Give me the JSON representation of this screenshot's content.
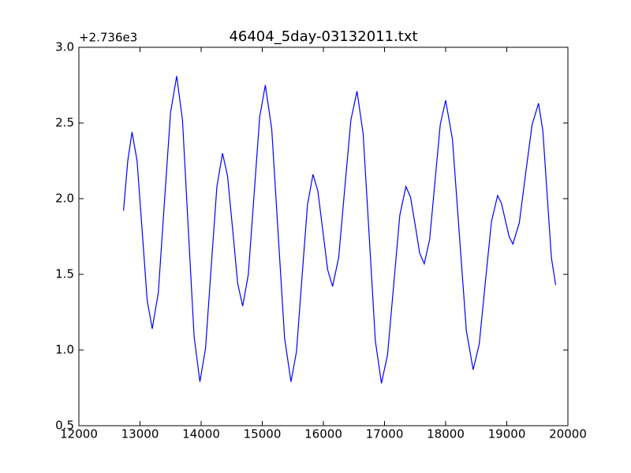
{
  "chart_data": {
    "type": "line",
    "title": "46404_5day-03132011.txt",
    "offset_label": "+2.736e3",
    "x": [
      12730,
      12800,
      12870,
      12952,
      13035,
      13117,
      13200,
      13300,
      13400,
      13500,
      13600,
      13695,
      13790,
      13885,
      13980,
      14072,
      14165,
      14258,
      14350,
      14432,
      14515,
      14598,
      14680,
      14772,
      14865,
      14958,
      15050,
      15155,
      15260,
      15365,
      15470,
      15560,
      15650,
      15740,
      15830,
      15910,
      15990,
      16070,
      16150,
      16250,
      16350,
      16450,
      16550,
      16650,
      16750,
      16850,
      16950,
      17050,
      17150,
      17250,
      17350,
      17425,
      17500,
      17575,
      17650,
      17738,
      17825,
      17912,
      18000,
      18112,
      18225,
      18338,
      18450,
      18550,
      18650,
      18750,
      18850,
      18912,
      18975,
      19038,
      19100,
      19205,
      19310,
      19415,
      19520,
      19590,
      19660,
      19730,
      19800
    ],
    "series": [
      {
        "color": "#0000ff",
        "values": [
          1.92,
          2.25,
          2.44,
          2.25,
          1.79,
          1.33,
          1.14,
          1.38,
          1.98,
          2.57,
          2.81,
          2.52,
          1.8,
          1.09,
          0.79,
          1.01,
          1.55,
          2.08,
          2.3,
          2.15,
          1.8,
          1.44,
          1.29,
          1.5,
          2.02,
          2.54,
          2.75,
          2.46,
          1.77,
          1.08,
          0.79,
          0.99,
          1.48,
          1.96,
          2.16,
          2.05,
          1.79,
          1.53,
          1.42,
          1.61,
          2.07,
          2.52,
          2.71,
          2.43,
          1.75,
          1.06,
          0.78,
          0.97,
          1.43,
          1.89,
          2.08,
          2.01,
          1.83,
          1.64,
          1.57,
          1.73,
          2.11,
          2.49,
          2.65,
          2.39,
          1.76,
          1.13,
          0.87,
          1.04,
          1.45,
          1.85,
          2.02,
          1.97,
          1.86,
          1.75,
          1.7,
          1.84,
          2.17,
          2.49,
          2.63,
          2.45,
          2.03,
          1.61,
          1.43
        ]
      }
    ],
    "xlim": [
      12000,
      20000
    ],
    "xticks": [
      12000,
      13000,
      14000,
      15000,
      16000,
      17000,
      18000,
      19000,
      20000
    ],
    "ylim": [
      0.5,
      3.0
    ],
    "yticks": [
      0.5,
      {
        "value": 1,
        "label": "1.0"
      },
      1.5,
      {
        "value": 2,
        "label": "2.0"
      },
      2.5,
      {
        "value": 3,
        "label": "3.0"
      }
    ]
  }
}
